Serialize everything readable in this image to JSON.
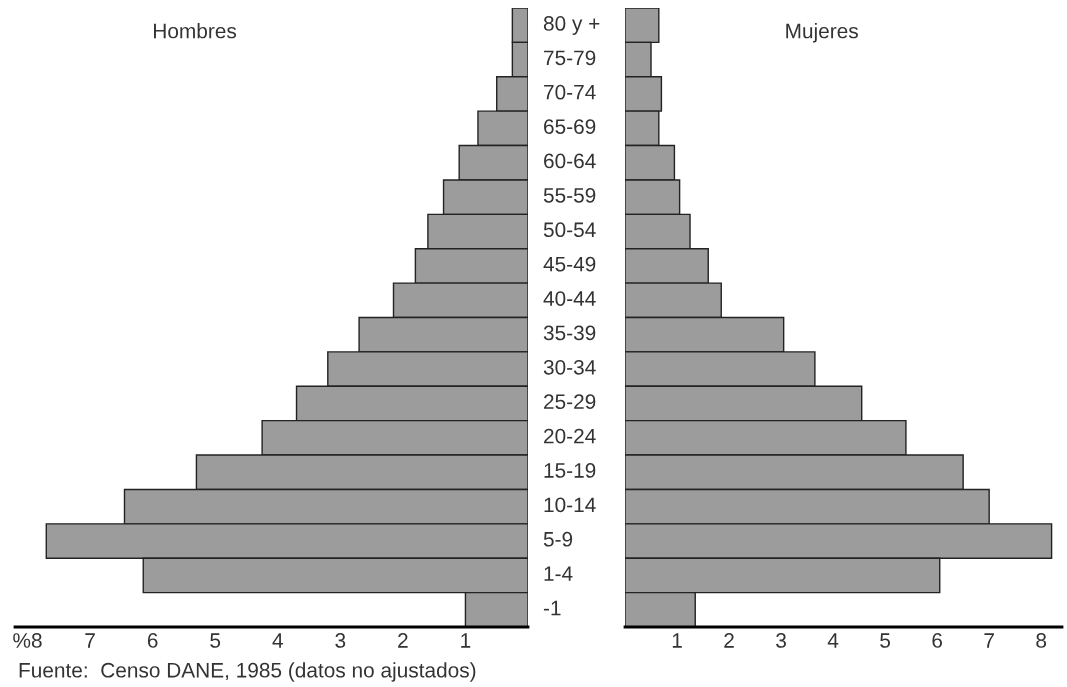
{
  "chart_data": [
    {
      "type": "bar",
      "orientation": "horizontal",
      "title": "Hombres",
      "tick_labels": "x",
      "categories": [
        null,
        null,
        null,
        null,
        null,
        null,
        null,
        null,
        null,
        null,
        null,
        null,
        null,
        null,
        null,
        null,
        null,
        null
      ],
      "series": [
        {
          "color": "#9c9c9c",
          "values": [
            0.25,
            0.25,
            0.5,
            0.8,
            1.1,
            1.35,
            1.6,
            1.8,
            2.15,
            2.7,
            3.2,
            3.7,
            4.25,
            5.3,
            6.45,
            7.7,
            6.15,
            1.0
          ]
        }
      ],
      "xlim": [
        8.2,
        0
      ],
      "xticks": [
        {
          "value": 8,
          "label": "%8"
        },
        7,
        6,
        5,
        4,
        3,
        2,
        1
      ],
      "grid": false,
      "annotations": [
        "Fuente:  Censo DANE, 1985 (datos no ajustados)"
      ]
    },
    {
      "type": "bar",
      "orientation": "horizontal",
      "title": "Mujeres",
      "categories": [
        "80 y +",
        "75-79",
        "70-74",
        "65-69",
        "60-64",
        "55-59",
        "50-54",
        "45-49",
        "40-44",
        "35-39",
        "30-34",
        "25-29",
        "20-24",
        "15-19",
        "10-14",
        "5-9",
        "1-4",
        "-1"
      ],
      "series": [
        {
          "color": "#9c9c9c",
          "values": [
            0.65,
            0.5,
            0.7,
            0.65,
            0.95,
            1.05,
            1.25,
            1.6,
            1.85,
            3.05,
            3.65,
            4.55,
            5.4,
            6.5,
            7.0,
            8.2,
            6.05,
            1.35
          ]
        }
      ],
      "xlim": [
        0,
        8.4
      ],
      "xticks": [
        1,
        2,
        3,
        4,
        5,
        6,
        7,
        8
      ],
      "grid": false
    }
  ]
}
